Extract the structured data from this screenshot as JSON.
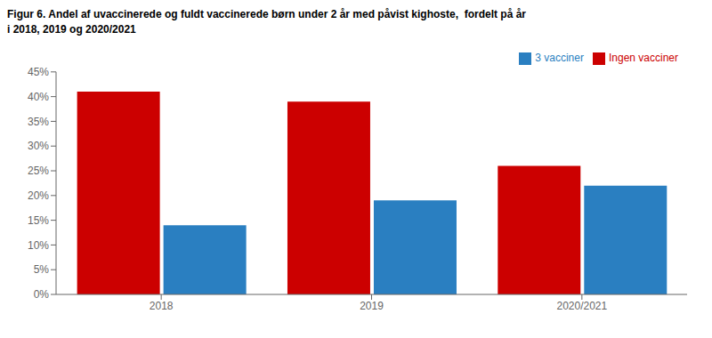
{
  "chart_data": {
    "type": "bar",
    "title": "Figur 6. Andel af uvaccinerede og fuldt vaccinerede børn under 2 år med påvist kighoste,  fordelt på år",
    "subtitle": "i 2018, 2019 og 2020/2021",
    "categories": [
      "2018",
      "2019",
      "2020/2021"
    ],
    "series": [
      {
        "name": "Ingen vacciner",
        "color": "#cc0000",
        "values": [
          0.41,
          0.39,
          0.26
        ]
      },
      {
        "name": "3 vacciner",
        "color": "#2a7fc1",
        "values": [
          0.14,
          0.19,
          0.22
        ]
      }
    ],
    "ylim": [
      0,
      0.45
    ],
    "yticks": [
      {
        "value": 0.0,
        "label": "0%"
      },
      {
        "value": 0.05,
        "label": "5%"
      },
      {
        "value": 0.1,
        "label": "10%"
      },
      {
        "value": 0.15,
        "label": "15%"
      },
      {
        "value": 0.2,
        "label": "20%"
      },
      {
        "value": 0.25,
        "label": "25%"
      },
      {
        "value": 0.3,
        "label": "30%"
      },
      {
        "value": 0.35,
        "label": "35%"
      },
      {
        "value": 0.4,
        "label": "40%"
      },
      {
        "value": 0.45,
        "label": "45%"
      }
    ],
    "grid": false,
    "legend": "upper right"
  }
}
